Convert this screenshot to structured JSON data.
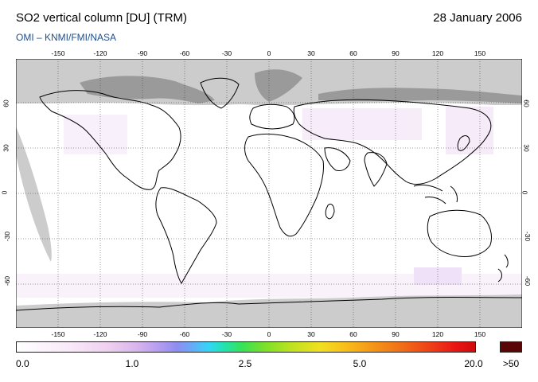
{
  "header": {
    "title": "SO2 vertical column [DU] (TRM)",
    "date": "28 January 2006",
    "credit": "OMI  –  KNMI/FMI/NASA"
  },
  "map": {
    "lon_ticks": [
      "-150",
      "-120",
      "-90",
      "-60",
      "-30",
      "0",
      "30",
      "60",
      "90",
      "120",
      "150"
    ],
    "lat_ticks": [
      "60",
      "30",
      "0",
      "-30",
      "-60"
    ],
    "no_data_color": "#cccccc",
    "coastline_color": "#000000",
    "gridline_style": "dotted"
  },
  "colorbar": {
    "labels": [
      "0.0",
      "1.0",
      "2.5",
      "5.0",
      "20.0"
    ],
    "overflow_label": ">50",
    "overflow_color": "#5a0606",
    "colors": [
      "#ffffff",
      "#efcff0",
      "#8e8df0",
      "#33d6f7",
      "#34e25a",
      "#f0e020",
      "#f59a18",
      "#ee3a18",
      "#d00b0b"
    ]
  }
}
